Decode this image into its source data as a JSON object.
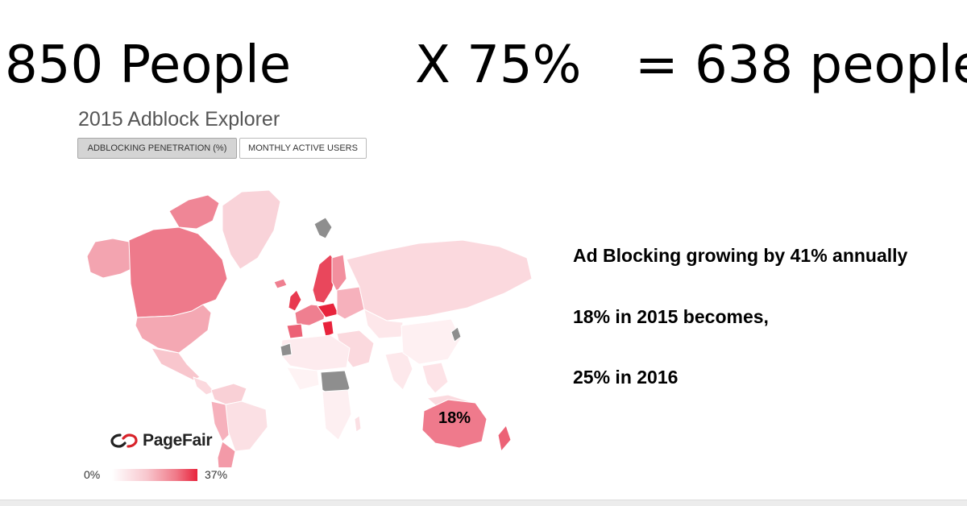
{
  "headline": {
    "people": "850 People",
    "multiplier": "X 75%",
    "result": "= 638 people"
  },
  "explorer": {
    "title": "2015 Adblock Explorer",
    "tabs": [
      {
        "label": "ADBLOCKING PENETRATION (%)",
        "selected": true
      },
      {
        "label": "MONTHLY ACTIVE USERS",
        "selected": false
      }
    ]
  },
  "map": {
    "annotation": "18%",
    "logo_text": "PageFair",
    "legend": {
      "min_label": "0%",
      "max_label": "37%"
    },
    "colors": {
      "low": "#fde4e7",
      "mid": "#f6a9b4",
      "high": "#ee6f80",
      "max": "#e8233c",
      "no_data": "#8e8e8e",
      "brand": "#d8232a"
    }
  },
  "notes": {
    "growth": "Ad Blocking growing by 41% annually",
    "year_2015": "18% in 2015 becomes,",
    "year_2016": "25% in 2016"
  }
}
